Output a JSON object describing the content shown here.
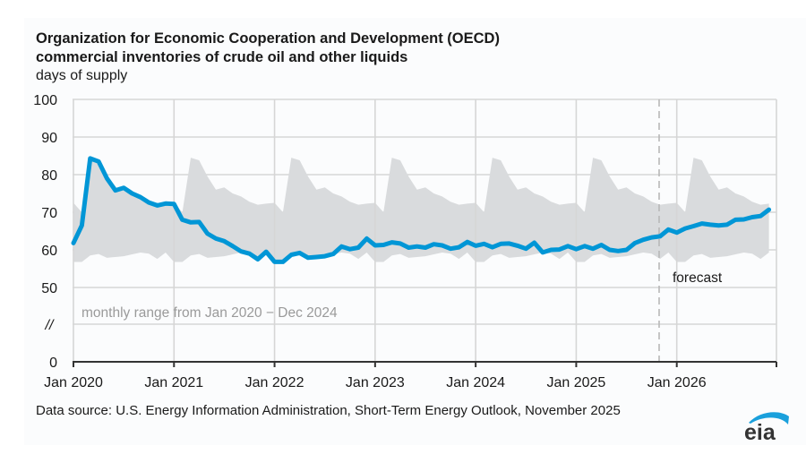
{
  "header": {
    "title_line1": "Organization for Economic Cooperation and Development (OECD)",
    "title_line2": "commercial inventories of crude oil and other liquids",
    "units": "days of supply"
  },
  "footer": {
    "source": "Data source: U.S. Energy Information Administration, Short-Term Energy Outlook, November 2025",
    "logo_text": "eia"
  },
  "colors": {
    "series": "#0096d6",
    "band": "#d9dbdd",
    "grid": "#d6d6d6",
    "forecast_line": "#b8b8b8",
    "note_text": "#9a9a9a",
    "logo_arc": "#1aa0dc"
  },
  "chart_data": {
    "type": "line",
    "title": "Organization for Economic Cooperation and Development (OECD) commercial inventories of crude oil and other liquids",
    "ylabel": "days of supply",
    "xlabel": "",
    "ylim": [
      0,
      100
    ],
    "y_axis_break": "//",
    "yticks": [
      "0",
      "//",
      "50",
      "60",
      "70",
      "80",
      "90",
      "100"
    ],
    "xticks": [
      "Jan 2020",
      "Jan 2021",
      "Jan 2022",
      "Jan 2023",
      "Jan 2024",
      "Jan 2025",
      "Jan 2026"
    ],
    "grid": true,
    "x_start": "Jan 2020",
    "x_end": "Dec 2026",
    "forecast_start": "Nov 2025",
    "forecast_label": "forecast",
    "band_label": "monthly range from Jan 2020 − Dec 2024",
    "band": {
      "name": "monthly range from Jan 2020 - Dec 2024",
      "months": [
        "Jan",
        "Feb",
        "Mar",
        "Apr",
        "May",
        "Jun",
        "Jul",
        "Aug",
        "Sep",
        "Oct",
        "Nov",
        "Dec"
      ],
      "upper": [
        72.5,
        70.0,
        84.5,
        83.8,
        79.5,
        76.0,
        76.6,
        75.0,
        74.2,
        72.8,
        72.0,
        72.3
      ],
      "lower": [
        56.8,
        56.8,
        58.5,
        58.9,
        57.9,
        58.1,
        58.3,
        58.8,
        59.3,
        59.0,
        57.6,
        59.3
      ]
    },
    "series": [
      {
        "name": "OECD commercial inventories (days of supply)",
        "start": "Jan 2020",
        "values": [
          61.8,
          66.5,
          84.3,
          83.5,
          79.0,
          75.8,
          76.5,
          75.0,
          74.0,
          72.6,
          71.8,
          72.3,
          72.2,
          68.0,
          67.3,
          67.4,
          64.3,
          63.0,
          62.3,
          61.0,
          59.6,
          59.0,
          57.5,
          59.5,
          56.8,
          56.8,
          58.7,
          59.2,
          57.9,
          58.1,
          58.3,
          58.9,
          60.9,
          60.2,
          60.6,
          63.0,
          61.2,
          61.3,
          62.0,
          61.7,
          60.6,
          60.9,
          60.6,
          61.5,
          61.2,
          60.3,
          60.7,
          62.1,
          61.1,
          61.6,
          60.7,
          61.6,
          61.7,
          61.1,
          60.3,
          61.9,
          59.3,
          60.0,
          60.1,
          61.0,
          60.2,
          61.0,
          60.3,
          61.3,
          60.0,
          59.7,
          60.0,
          61.8,
          62.7,
          63.3,
          63.6,
          65.4,
          64.6,
          65.7,
          66.3,
          67.0,
          66.7,
          66.5,
          66.7,
          68.0,
          68.1,
          68.7,
          69.0,
          70.7
        ]
      }
    ]
  }
}
